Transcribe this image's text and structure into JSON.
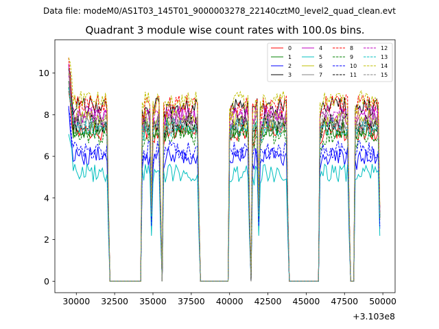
{
  "chart_data": {
    "type": "line",
    "suptitle": "Data file: modeM0/AS1T03_145T01_9000003278_22140cztM0_level2_quad_clean.evt",
    "title": "Quadrant 3 module wise count rates with 100.0s bins.",
    "xlabel": "",
    "ylabel": "",
    "x_offset_label": "+3.103e8",
    "xlim": [
      28600,
      50800
    ],
    "ylim": [
      -0.55,
      11.6
    ],
    "x_ticks": [
      30000,
      32500,
      35000,
      37500,
      40000,
      42500,
      45000,
      47500,
      50000
    ],
    "x_tick_labels": [
      "30000",
      "32500",
      "35000",
      "37500",
      "40000",
      "42500",
      "45000",
      "47500",
      "50000"
    ],
    "y_ticks": [
      0,
      2,
      4,
      6,
      8,
      10
    ],
    "y_tick_labels": [
      "0",
      "2",
      "4",
      "6",
      "8",
      "10"
    ],
    "legend_position": "top-right",
    "segments": [
      {
        "start": 29500,
        "end": 32100
      },
      {
        "start": 34300,
        "end": 34900
      },
      {
        "start": 35000,
        "end": 35500
      },
      {
        "start": 35700,
        "end": 38000
      },
      {
        "start": 40000,
        "end": 41300
      },
      {
        "start": 41500,
        "end": 41900
      },
      {
        "start": 42000,
        "end": 43800
      },
      {
        "start": 45900,
        "end": 47800
      },
      {
        "start": 48200,
        "end": 49800
      }
    ],
    "gap_value": 0,
    "series": [
      {
        "name": "0",
        "color": "#ff0000",
        "dash": "solid",
        "level": 7.2
      },
      {
        "name": "1",
        "color": "#008000",
        "dash": "solid",
        "level": 7.3
      },
      {
        "name": "2",
        "color": "#0000ff",
        "dash": "solid",
        "level": 6.0
      },
      {
        "name": "3",
        "color": "#000000",
        "dash": "solid",
        "level": 8.4
      },
      {
        "name": "4",
        "color": "#bf00bf",
        "dash": "solid",
        "level": 7.9
      },
      {
        "name": "5",
        "color": "#00bfbf",
        "dash": "solid",
        "level": 5.2
      },
      {
        "name": "6",
        "color": "#bfbf00",
        "dash": "solid",
        "level": 7.8
      },
      {
        "name": "7",
        "color": "#808080",
        "dash": "solid",
        "level": 7.5
      },
      {
        "name": "8",
        "color": "#ff0000",
        "dash": "dashed",
        "level": 8.5
      },
      {
        "name": "9",
        "color": "#008000",
        "dash": "dashed",
        "level": 7.0
      },
      {
        "name": "10",
        "color": "#0000ff",
        "dash": "dashed",
        "level": 6.3
      },
      {
        "name": "11",
        "color": "#000000",
        "dash": "dashed",
        "level": 7.6
      },
      {
        "name": "12",
        "color": "#bf00bf",
        "dash": "dashed",
        "level": 8.0
      },
      {
        "name": "13",
        "color": "#00bfbf",
        "dash": "dashed",
        "level": 7.4
      },
      {
        "name": "14",
        "color": "#bfbf00",
        "dash": "dashed",
        "level": 8.7
      },
      {
        "name": "15",
        "color": "#808080",
        "dash": "dashed",
        "level": 7.7
      }
    ]
  }
}
